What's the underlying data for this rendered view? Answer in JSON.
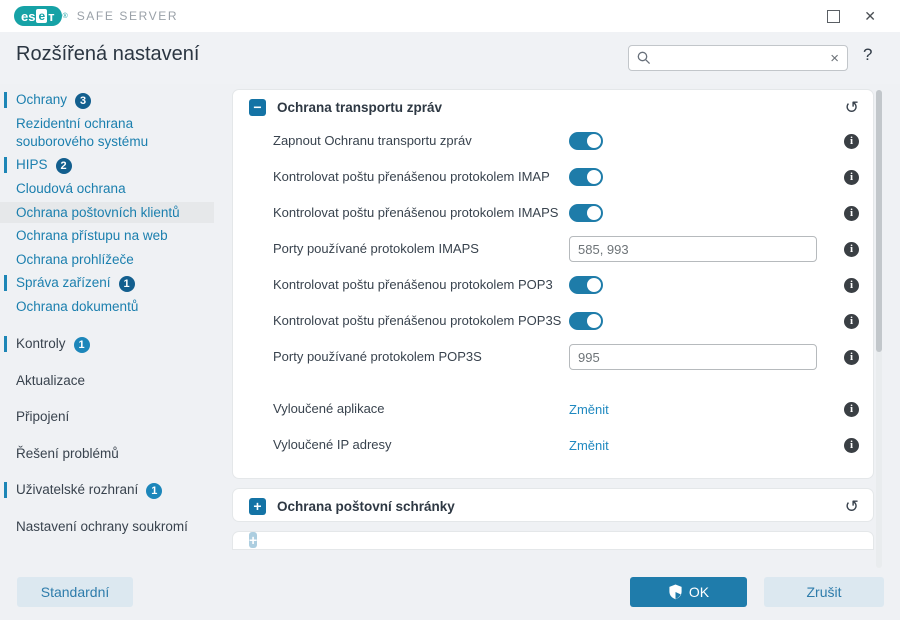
{
  "titlebar": {
    "logo_es": "es",
    "logo_e": "e",
    "logo_t": "т",
    "logo_reg": "®",
    "product": "SAFE SERVER"
  },
  "icons": {
    "close": "✕",
    "help": "?",
    "clear": "×",
    "collapse": "−",
    "expand": "+",
    "undo": "↺",
    "info": "i"
  },
  "header": {
    "title": "Rozšířená nastavení",
    "search_placeholder": ""
  },
  "sidebar": {
    "items": [
      {
        "label": "Ochrany",
        "badge": "3",
        "badge_tone": "dark",
        "accent": true,
        "style": "sub"
      },
      {
        "label": "Rezidentní ochrana souborového systému",
        "style": "sub"
      },
      {
        "label": "HIPS",
        "badge": "2",
        "badge_tone": "dark",
        "accent": true,
        "style": "sub"
      },
      {
        "label": "Cloudová ochrana",
        "style": "sub"
      },
      {
        "label": "Ochrana poštovních klientů",
        "style": "sub",
        "selected": true
      },
      {
        "label": "Ochrana přístupu na web",
        "style": "sub"
      },
      {
        "label": "Ochrana prohlížeče",
        "style": "sub"
      },
      {
        "label": "Správa zařízení",
        "badge": "1",
        "badge_tone": "dark",
        "accent": true,
        "style": "sub"
      },
      {
        "label": "Ochrana dokumentů",
        "style": "sub"
      },
      {
        "label": "Kontroly",
        "badge": "1",
        "badge_tone": "light",
        "accent": true,
        "style": "category"
      },
      {
        "label": "Aktualizace",
        "style": "category"
      },
      {
        "label": "Připojení",
        "style": "category"
      },
      {
        "label": "Řešení problémů",
        "style": "category"
      },
      {
        "label": "Uživatelské rozhraní",
        "badge": "1",
        "badge_tone": "light",
        "accent": true,
        "style": "category"
      },
      {
        "label": "Nastavení ochrany soukromí",
        "style": "category"
      }
    ]
  },
  "panel": {
    "sections": [
      {
        "title": "Ochrana transportu zpráv",
        "expanded": true,
        "rows": [
          {
            "type": "toggle",
            "label": "Zapnout Ochranu transportu zpráv",
            "state": "on"
          },
          {
            "type": "toggle",
            "label": "Kontrolovat poštu přenášenou protokolem IMAP",
            "state": "on"
          },
          {
            "type": "toggle",
            "label": "Kontrolovat poštu přenášenou protokolem IMAPS",
            "state": "on"
          },
          {
            "type": "input",
            "label": "Porty používané protokolem IMAPS",
            "value": "585, 993"
          },
          {
            "type": "toggle",
            "label": "Kontrolovat poštu přenášenou protokolem POP3",
            "state": "on"
          },
          {
            "type": "toggle",
            "label": "Kontrolovat poštu přenášenou protokolem POP3S",
            "state": "on"
          },
          {
            "type": "input",
            "label": "Porty používané protokolem POP3S",
            "value": "995",
            "gap_after": true
          },
          {
            "type": "link",
            "label": "Vyloučené aplikace",
            "action": "Změnit"
          },
          {
            "type": "link",
            "label": "Vyloučené IP adresy",
            "action": "Změnit"
          }
        ]
      },
      {
        "title": "Ochrana poštovní schránky",
        "expanded": false
      }
    ]
  },
  "footer": {
    "default": "Standardní",
    "ok": "OK",
    "cancel": "Zrušit"
  },
  "colors": {
    "accent_blue": "#1f7cab",
    "brand_teal": "#16a2a6",
    "link_blue": "#2089c0",
    "sidebar_link": "#1b7fae",
    "text_dark": "#39434e",
    "badge_dark": "#135f8e",
    "badge_light": "#1c86ba"
  }
}
